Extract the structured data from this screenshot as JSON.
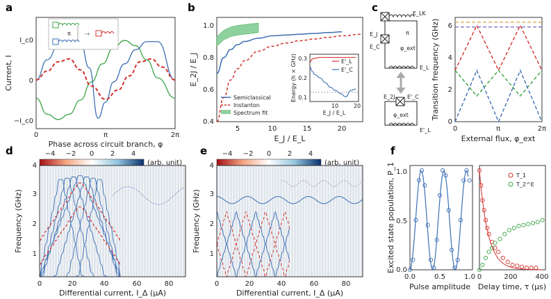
{
  "colors": {
    "blue": "#3c6fb4",
    "red": "#d2322d",
    "green": "#3aa545",
    "lgreen": "#8fd19e",
    "grey": "#888888",
    "orange": "#e3a857",
    "purple": "#7c72c8"
  },
  "panels": {
    "a": {
      "label": "a",
      "xlabel": "Phase across circuit branch, φ",
      "ylabel": "Current, I",
      "xticks": [
        "0",
        "π",
        "2π"
      ],
      "yticks": [
        "I_c0",
        "0",
        "−I_c0"
      ],
      "inset_symbol": "π"
    },
    "b": {
      "label": "b",
      "xlabel": "E_J / E_L",
      "ylabel": "E_2J / E_J",
      "xticks": [
        "5",
        "10",
        "15",
        "20"
      ],
      "yticks": [
        "0.4",
        "0.6",
        "0.8",
        "1.0"
      ],
      "legend": [
        "Semiclassical",
        "Instanton",
        "Spectrum fit"
      ],
      "inset": {
        "ylabel": "Energy (h × GHz)",
        "xlabel": "E_J / E_L",
        "xticks": [
          "10",
          "20"
        ],
        "yticks": [
          "0.1",
          "0.2",
          "0.3"
        ],
        "legend": [
          "E'_L",
          "E'_C"
        ]
      }
    },
    "c": {
      "label": "c",
      "xlabel": "External flux, φ_ext",
      "ylabel": "Transition frequency (GHz)",
      "xticks": [
        "0",
        "π",
        "2π"
      ],
      "yticks": [
        "0",
        "2",
        "4",
        "6"
      ],
      "circuit_labels": {
        "elk": "E_LK",
        "ej": "E_J",
        "ec": "E_C",
        "phi": "φ_ext",
        "el": "E_L",
        "pi": "π",
        "e2j": "E_2J",
        "ecp": "E'_C",
        "phi2": "φ_ext",
        "elp": "E'_L"
      }
    },
    "d": {
      "label": "d",
      "xlabel": "Differential current, I_Δ (μA)",
      "ylabel": "Frequency (GHz)",
      "xticks": [
        "0",
        "20",
        "40",
        "60",
        "80"
      ],
      "yticks": [
        "1",
        "2",
        "3",
        "4"
      ],
      "cbar_ticks": [
        "−4",
        "−2",
        "0",
        "2",
        "4"
      ],
      "cbar_unit": "(arb. unit)"
    },
    "e": {
      "label": "e",
      "xlabel": "Differential current, I_Δ (μA)",
      "ylabel": "Frequency (GHz)",
      "xticks": [
        "0",
        "20",
        "40",
        "60",
        "80"
      ],
      "yticks": [
        "1",
        "2",
        "3",
        "4"
      ],
      "cbar_ticks": [
        "−4",
        "−2",
        "0",
        "2",
        "4"
      ],
      "cbar_unit": "(arb. unit)"
    },
    "f": {
      "label": "f",
      "ylabel": "Excited state population, P_1",
      "left": {
        "xlabel": "Pulse amplitude",
        "xticks": [
          "0.0",
          "0.5",
          "1.0"
        ],
        "yticks": [
          "0.0",
          "0.5",
          "1.0"
        ]
      },
      "right": {
        "xlabel": "Delay time, τ (μs)",
        "xticks": [
          "0",
          "200",
          "400"
        ],
        "legend": [
          "T_1",
          "T_2^E"
        ]
      }
    }
  },
  "chart_data": [
    {
      "panel": "a",
      "type": "line",
      "title": "",
      "x_range": [
        0,
        6.2832
      ],
      "y_range": [
        -1,
        1
      ],
      "series": [
        {
          "name": "green",
          "x": [
            0,
            0.5,
            1,
            1.5,
            2,
            2.5,
            3,
            3.5,
            4,
            4.5,
            5,
            5.5,
            6.28
          ],
          "y": [
            -0.45,
            -0.85,
            -0.98,
            -0.85,
            -0.5,
            -0.05,
            0.4,
            0.8,
            0.98,
            0.85,
            0.5,
            0.05,
            -0.45
          ]
        },
        {
          "name": "blue",
          "x": [
            0,
            0.5,
            1,
            1.5,
            2.0,
            2.4,
            2.8,
            3.14,
            3.5,
            4,
            4.5,
            5,
            5.5,
            6.28
          ],
          "y": [
            0,
            0.5,
            0.85,
            0.98,
            0.95,
            0.3,
            -0.95,
            -0.55,
            -0.05,
            0.4,
            0.75,
            0.95,
            0.95,
            0
          ]
        },
        {
          "name": "red dashed",
          "x": [
            0,
            0.5,
            1,
            1.5,
            2,
            2.5,
            3.14,
            3.7,
            4.2,
            4.7,
            5.2,
            5.7,
            6.28
          ],
          "y": [
            0,
            0.22,
            0.45,
            0.52,
            0.25,
            -0.15,
            -0.48,
            -0.25,
            0.1,
            0.45,
            0.52,
            0.32,
            0
          ]
        }
      ]
    },
    {
      "panel": "b",
      "type": "line",
      "x_range": [
        2,
        23
      ],
      "y_range": [
        0.4,
        1.05
      ],
      "series": [
        {
          "name": "Semiclassical",
          "x": [
            2,
            3,
            4,
            5,
            6,
            8,
            10,
            12,
            14,
            16,
            18,
            20
          ],
          "y": [
            0.7,
            0.8,
            0.85,
            0.88,
            0.9,
            0.92,
            0.935,
            0.94,
            0.945,
            0.95,
            0.955,
            0.96
          ]
        },
        {
          "name": "Instanton",
          "x": [
            2,
            3,
            4,
            5,
            6,
            8,
            10,
            12,
            14,
            16,
            18,
            20,
            23
          ],
          "y": [
            0.4,
            0.55,
            0.66,
            0.73,
            0.78,
            0.84,
            0.87,
            0.89,
            0.905,
            0.915,
            0.925,
            0.935,
            0.945
          ]
        },
        {
          "name": "Spectrum fit",
          "x": [
            2,
            3,
            4,
            5,
            6,
            7,
            8
          ],
          "y": [
            0.9,
            0.94,
            0.96,
            0.97,
            0.975,
            0.98,
            0.985
          ]
        }
      ],
      "inset": {
        "x_range": [
          2,
          21
        ],
        "y_range": [
          0.05,
          0.35
        ],
        "series": [
          {
            "name": "E'_L",
            "x": [
              2,
              3,
              4,
              6,
              8,
              10,
              12,
              14,
              16,
              18,
              20
            ],
            "y": [
              0.3,
              0.32,
              0.325,
              0.33,
              0.33,
              0.33,
              0.33,
              0.33,
              0.33,
              0.33,
              0.33
            ]
          },
          {
            "name": "E'_C",
            "x": [
              2,
              3,
              4,
              6,
              8,
              10,
              12,
              14,
              16,
              18,
              20
            ],
            "y": [
              0.27,
              0.24,
              0.22,
              0.2,
              0.17,
              0.14,
              0.12,
              0.1,
              0.08,
              0.12,
              0.13
            ]
          }
        ]
      }
    },
    {
      "panel": "c",
      "type": "line",
      "x_range": [
        0,
        6.2832
      ],
      "y_range": [
        0,
        6.5
      ],
      "series": [
        {
          "name": "orange",
          "x": [
            0,
            1.57,
            3.14,
            4.71,
            6.28
          ],
          "y": [
            6.2,
            6.2,
            6.2,
            6.2,
            6.2
          ]
        },
        {
          "name": "purple",
          "x": [
            0,
            6.28
          ],
          "y": [
            5.9,
            5.9
          ]
        },
        {
          "name": "red",
          "x": [
            0,
            1.57,
            3.14,
            4.71,
            6.28
          ],
          "y": [
            3.2,
            6.0,
            3.2,
            6.0,
            3.2
          ]
        },
        {
          "name": "green",
          "x": [
            0,
            1.57,
            3.14,
            4.71,
            6.28
          ],
          "y": [
            3.2,
            1.6,
            3.2,
            1.6,
            3.2
          ]
        },
        {
          "name": "blue",
          "x": [
            0,
            1.57,
            3.14,
            4.71,
            6.28
          ],
          "y": [
            0,
            3.2,
            0,
            3.2,
            0
          ]
        }
      ]
    },
    {
      "panel": "d",
      "type": "heatmap",
      "x_range": [
        0,
        90
      ],
      "y_range": [
        0.3,
        4
      ],
      "z_range": [
        -4,
        4
      ]
    },
    {
      "panel": "e",
      "type": "heatmap",
      "x_range": [
        0,
        90
      ],
      "y_range": [
        0.3,
        4
      ],
      "z_range": [
        -4,
        4
      ]
    },
    {
      "panel": "f",
      "type": "scatter",
      "left": {
        "x_range": [
          0,
          1.05
        ],
        "y_range": [
          0,
          1.05
        ],
        "x": [
          0,
          0.05,
          0.1,
          0.15,
          0.2,
          0.25,
          0.3,
          0.35,
          0.4,
          0.45,
          0.5,
          0.55,
          0.6,
          0.65,
          0.7,
          0.75,
          0.8,
          0.85,
          0.9,
          0.95,
          1.0
        ],
        "y": [
          0,
          0.1,
          0.5,
          0.9,
          1.0,
          0.85,
          0.45,
          0.1,
          0.02,
          0.3,
          0.75,
          1.0,
          0.95,
          0.6,
          0.2,
          0.02,
          0.1,
          0.5,
          0.9,
          1.0,
          0.9
        ]
      },
      "right": {
        "x_range": [
          0,
          420
        ],
        "y_range": [
          0,
          1.05
        ],
        "T1": {
          "x": [
            0,
            10,
            20,
            30,
            40,
            50,
            60,
            80,
            100,
            120,
            150,
            180,
            210,
            240,
            270,
            300,
            330,
            360
          ],
          "y": [
            1.0,
            0.85,
            0.7,
            0.6,
            0.5,
            0.42,
            0.36,
            0.28,
            0.22,
            0.18,
            0.12,
            0.08,
            0.05,
            0.04,
            0.03,
            0.02,
            0.02,
            0.02
          ]
        },
        "T2E": {
          "x": [
            0,
            20,
            40,
            60,
            80,
            100,
            130,
            160,
            190,
            220,
            250,
            280,
            310,
            340,
            370,
            400
          ],
          "y": [
            0.0,
            0.05,
            0.12,
            0.18,
            0.22,
            0.27,
            0.31,
            0.36,
            0.4,
            0.42,
            0.44,
            0.45,
            0.46,
            0.47,
            0.48,
            0.5
          ]
        }
      }
    }
  ]
}
